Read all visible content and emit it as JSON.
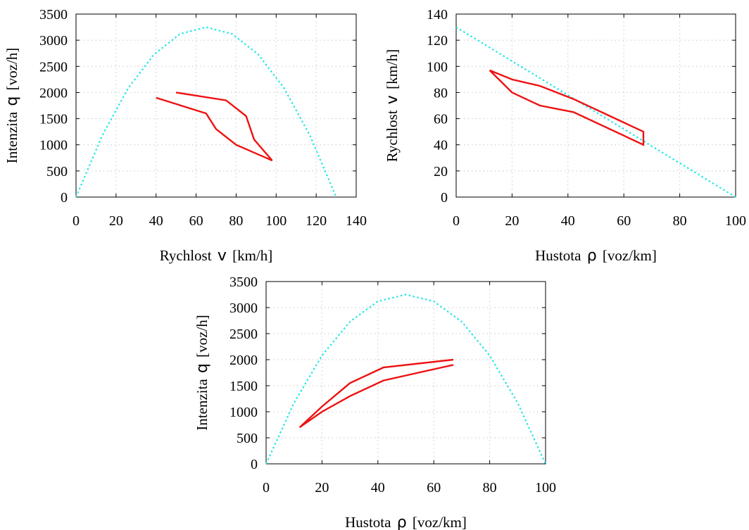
{
  "chart_data": [
    {
      "type": "line",
      "xlabel_text": "Rychlost",
      "xlabel_symbol": "v",
      "xlabel_unit": "[km/h]",
      "ylabel_text": "Intenzita",
      "ylabel_symbol": "q",
      "ylabel_unit": "[voz/h]",
      "xlim": [
        0,
        140
      ],
      "ylim": [
        0,
        3500
      ],
      "xticks": [
        0,
        20,
        40,
        60,
        80,
        100,
        120,
        140
      ],
      "yticks": [
        0,
        500,
        1000,
        1500,
        2000,
        2500,
        3000,
        3500
      ],
      "grid": true,
      "colors": {
        "model": "#22e6e6",
        "measured": "#ee1111"
      },
      "series": [
        {
          "style": "dotted",
          "x": [
            0,
            13,
            26,
            39,
            52,
            65,
            78,
            91,
            104,
            117,
            130
          ],
          "y": [
            0,
            1170,
            2080,
            2730,
            3120,
            3250,
            3120,
            2730,
            2080,
            1170,
            0
          ]
        },
        {
          "style": "solid",
          "x": [
            50,
            75,
            85,
            89,
            98,
            80,
            70,
            65,
            40
          ],
          "y": [
            2000,
            1850,
            1550,
            1100,
            700,
            1000,
            1300,
            1600,
            1900
          ]
        }
      ]
    },
    {
      "type": "line",
      "xlabel_text": "Hustota",
      "xlabel_symbol": "ρ",
      "xlabel_unit": "[voz/km]",
      "ylabel_text": "Rychlost",
      "ylabel_symbol": "v",
      "ylabel_unit": "[km/h]",
      "xlim": [
        0,
        100
      ],
      "ylim": [
        0,
        140
      ],
      "xticks": [
        0,
        20,
        40,
        60,
        80,
        100
      ],
      "yticks": [
        0,
        20,
        40,
        60,
        80,
        100,
        120,
        140
      ],
      "grid": true,
      "colors": {
        "model": "#22e6e6",
        "measured": "#ee1111"
      },
      "series": [
        {
          "style": "dotted",
          "x": [
            0,
            100
          ],
          "y": [
            130,
            0
          ]
        },
        {
          "style": "solid",
          "x": [
            12,
            20,
            30,
            42,
            67,
            67,
            42,
            30,
            20,
            12
          ],
          "y": [
            97,
            90,
            85,
            75,
            50,
            40,
            65,
            70,
            80,
            97
          ]
        }
      ]
    },
    {
      "type": "line",
      "xlabel_text": "Hustota",
      "xlabel_symbol": "ρ",
      "xlabel_unit": "[voz/km]",
      "ylabel_text": "Intenzita",
      "ylabel_symbol": "q",
      "ylabel_unit": "[voz/h]",
      "xlim": [
        0,
        100
      ],
      "ylim": [
        0,
        3500
      ],
      "xticks": [
        0,
        20,
        40,
        60,
        80,
        100
      ],
      "yticks": [
        0,
        500,
        1000,
        1500,
        2000,
        2500,
        3000,
        3500
      ],
      "grid": true,
      "colors": {
        "model": "#22e6e6",
        "measured": "#ee1111"
      },
      "series": [
        {
          "style": "dotted",
          "x": [
            0,
            10,
            20,
            30,
            40,
            50,
            60,
            70,
            80,
            90,
            100
          ],
          "y": [
            0,
            1170,
            2080,
            2730,
            3120,
            3250,
            3120,
            2730,
            2080,
            1170,
            0
          ]
        },
        {
          "style": "solid",
          "x": [
            67,
            42,
            30,
            20,
            12,
            20,
            30,
            42,
            67
          ],
          "y": [
            2000,
            1850,
            1550,
            1100,
            700,
            1000,
            1300,
            1600,
            1900
          ]
        }
      ]
    }
  ]
}
